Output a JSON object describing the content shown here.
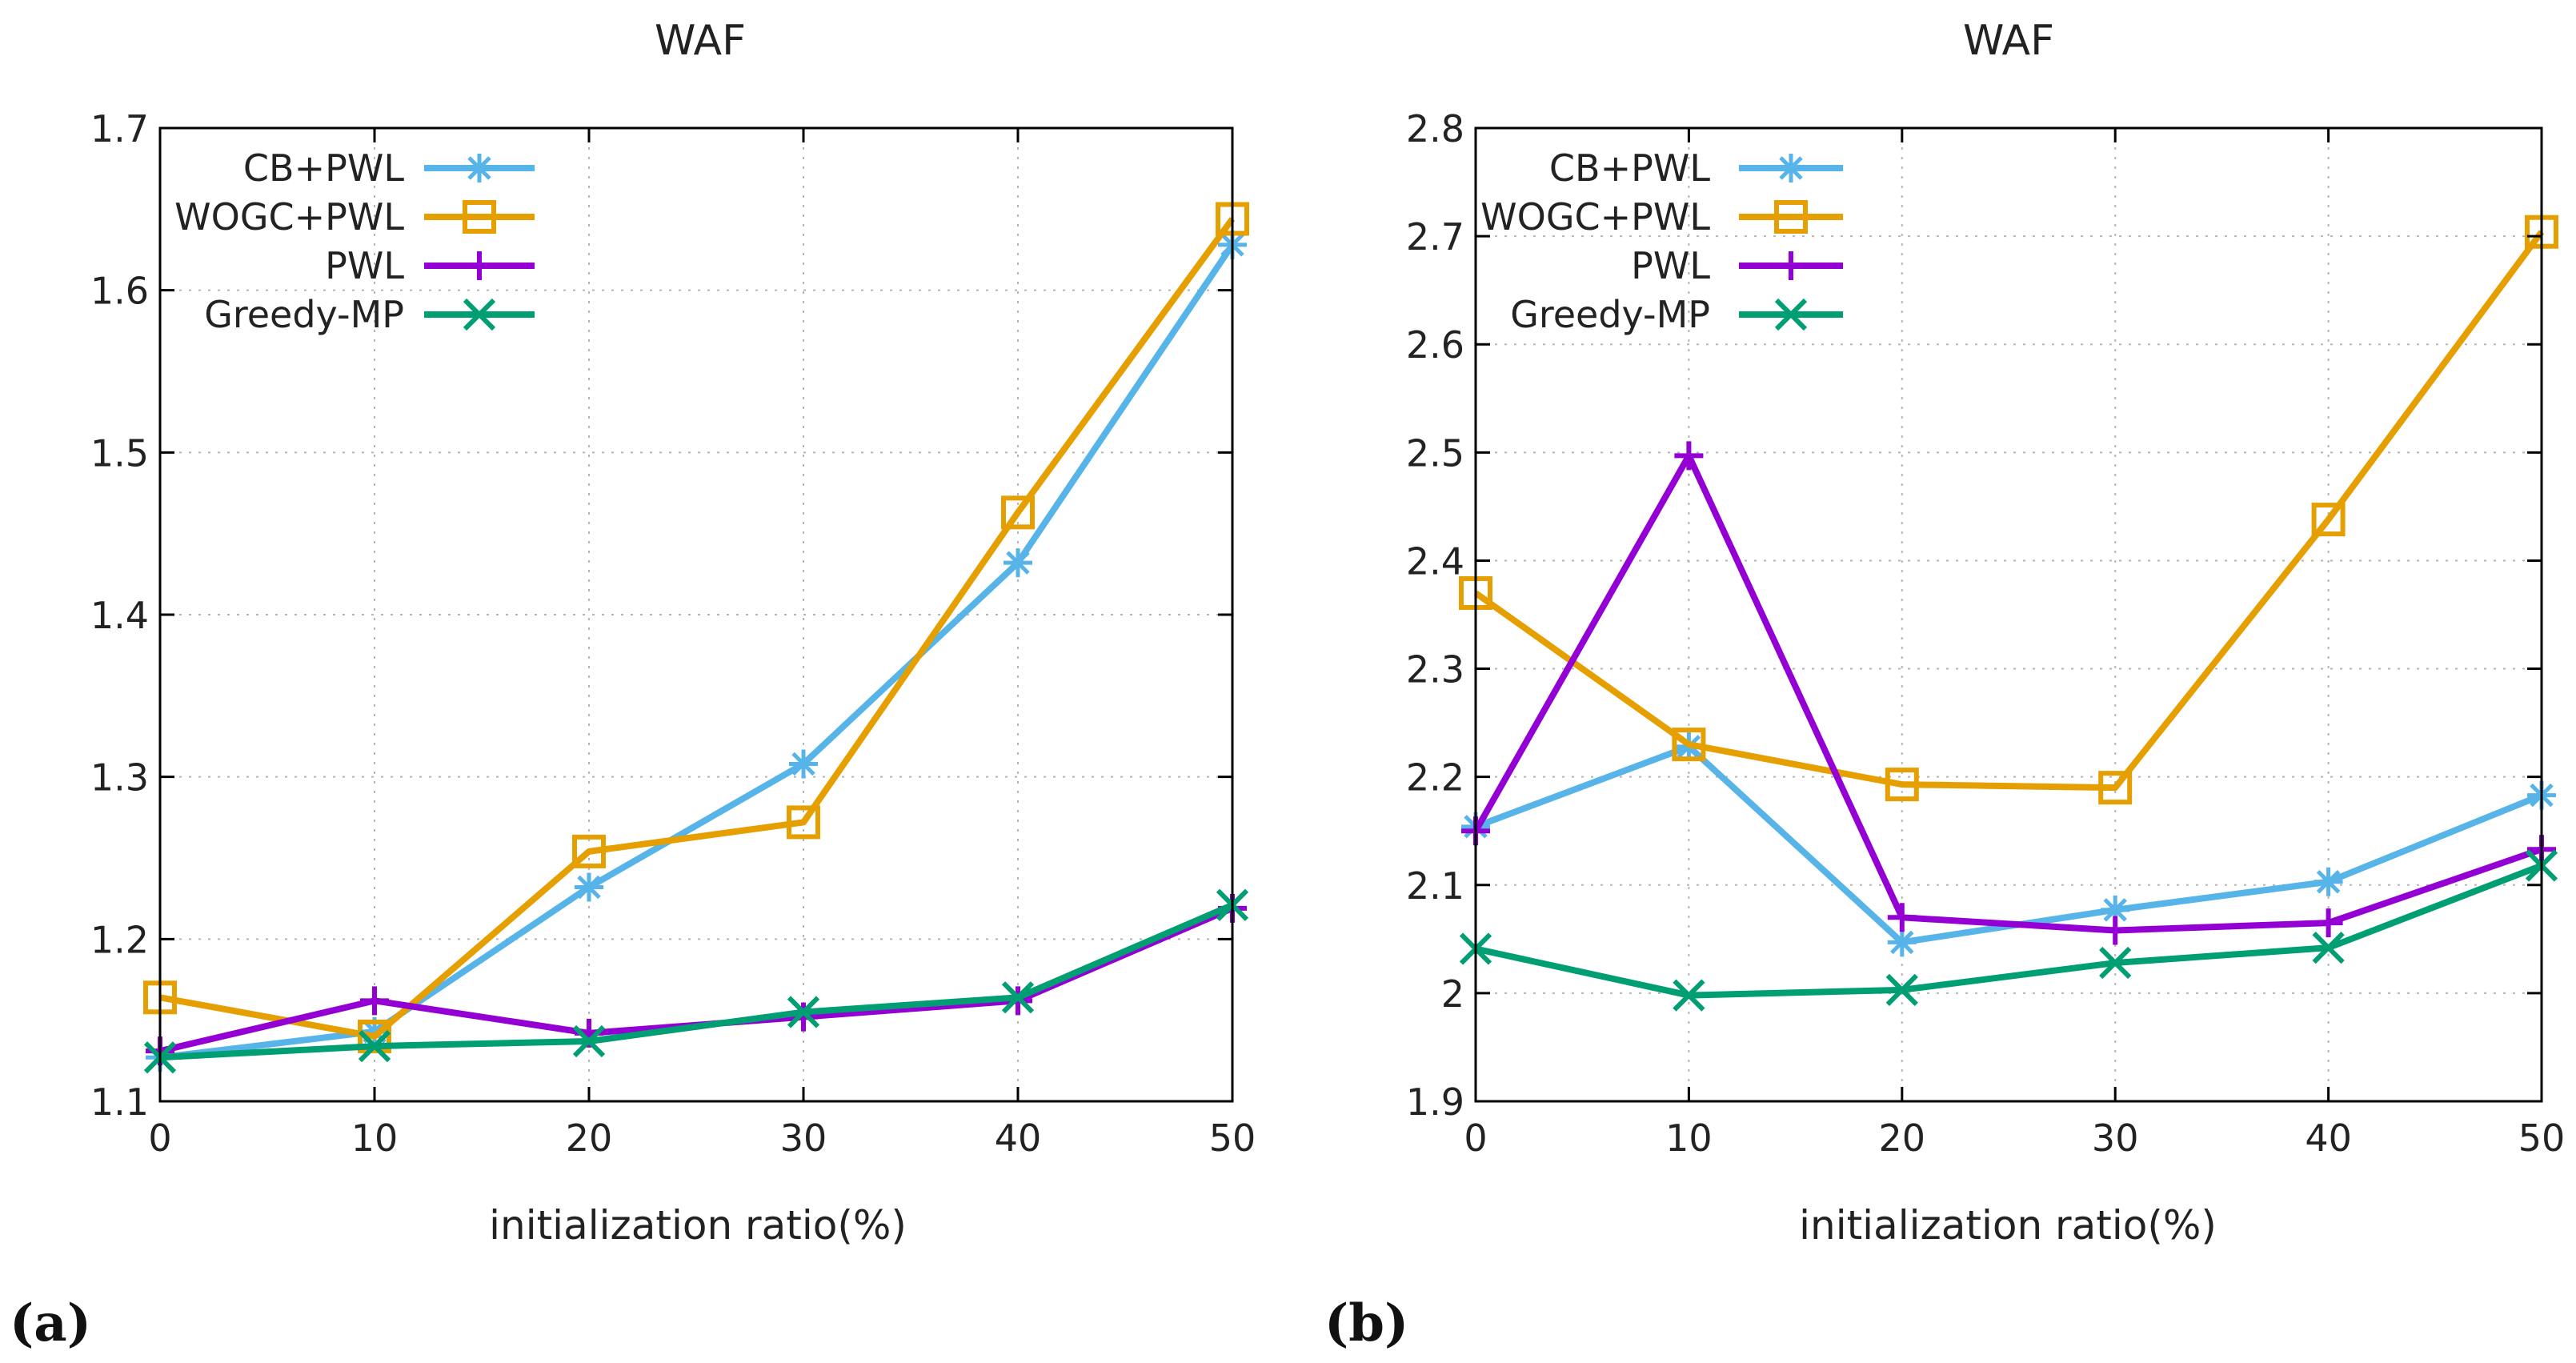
{
  "chart_data": [
    {
      "type": "line",
      "panel_label": "(a)",
      "title": "WAF",
      "xlabel": "initialization ratio(%)",
      "ylabel": "",
      "x": [
        0,
        10,
        20,
        30,
        40,
        50
      ],
      "xlim": [
        0,
        50
      ],
      "ylim": [
        1.1,
        1.7
      ],
      "xticks": [
        0,
        10,
        20,
        30,
        40,
        50
      ],
      "yticks": [
        1.1,
        1.2,
        1.3,
        1.4,
        1.5,
        1.6,
        1.7
      ],
      "grid": true,
      "legend_position": "top-left",
      "series": [
        {
          "name": "CB+PWL",
          "marker": "asterisk",
          "color": "#56B4E9",
          "values": [
            1.127,
            1.143,
            1.232,
            1.308,
            1.432,
            1.628
          ]
        },
        {
          "name": "WOGC+PWL",
          "marker": "square",
          "color": "#E69F00",
          "values": [
            1.164,
            1.14,
            1.254,
            1.272,
            1.463,
            1.644
          ]
        },
        {
          "name": "PWL",
          "marker": "plus",
          "color": "#9400D3",
          "values": [
            1.131,
            1.162,
            1.142,
            1.152,
            1.162,
            1.219
          ]
        },
        {
          "name": "Greedy-MP",
          "marker": "x",
          "color": "#009E73",
          "values": [
            1.127,
            1.134,
            1.137,
            1.155,
            1.164,
            1.221
          ]
        }
      ]
    },
    {
      "type": "line",
      "panel_label": "(b)",
      "title": "WAF",
      "xlabel": "initialization ratio(%)",
      "ylabel": "",
      "x": [
        0,
        10,
        20,
        30,
        40,
        50
      ],
      "xlim": [
        0,
        50
      ],
      "ylim": [
        1.9,
        2.8
      ],
      "xticks": [
        0,
        10,
        20,
        30,
        40,
        50
      ],
      "yticks": [
        1.9,
        2,
        2.1,
        2.2,
        2.3,
        2.4,
        2.5,
        2.6,
        2.7,
        2.8
      ],
      "grid": true,
      "legend_position": "top-left",
      "series": [
        {
          "name": "CB+PWL",
          "marker": "asterisk",
          "color": "#56B4E9",
          "values": [
            2.154,
            2.228,
            2.047,
            2.077,
            2.103,
            2.183
          ]
        },
        {
          "name": "WOGC+PWL",
          "marker": "square",
          "color": "#E69F00",
          "values": [
            2.37,
            2.23,
            2.193,
            2.19,
            2.438,
            2.704
          ]
        },
        {
          "name": "PWL",
          "marker": "plus",
          "color": "#9400D3",
          "values": [
            2.15,
            2.497,
            2.07,
            2.058,
            2.065,
            2.133
          ]
        },
        {
          "name": "Greedy-MP",
          "marker": "x",
          "color": "#009E73",
          "values": [
            2.041,
            1.998,
            2.003,
            2.028,
            2.042,
            2.118
          ]
        }
      ]
    }
  ]
}
